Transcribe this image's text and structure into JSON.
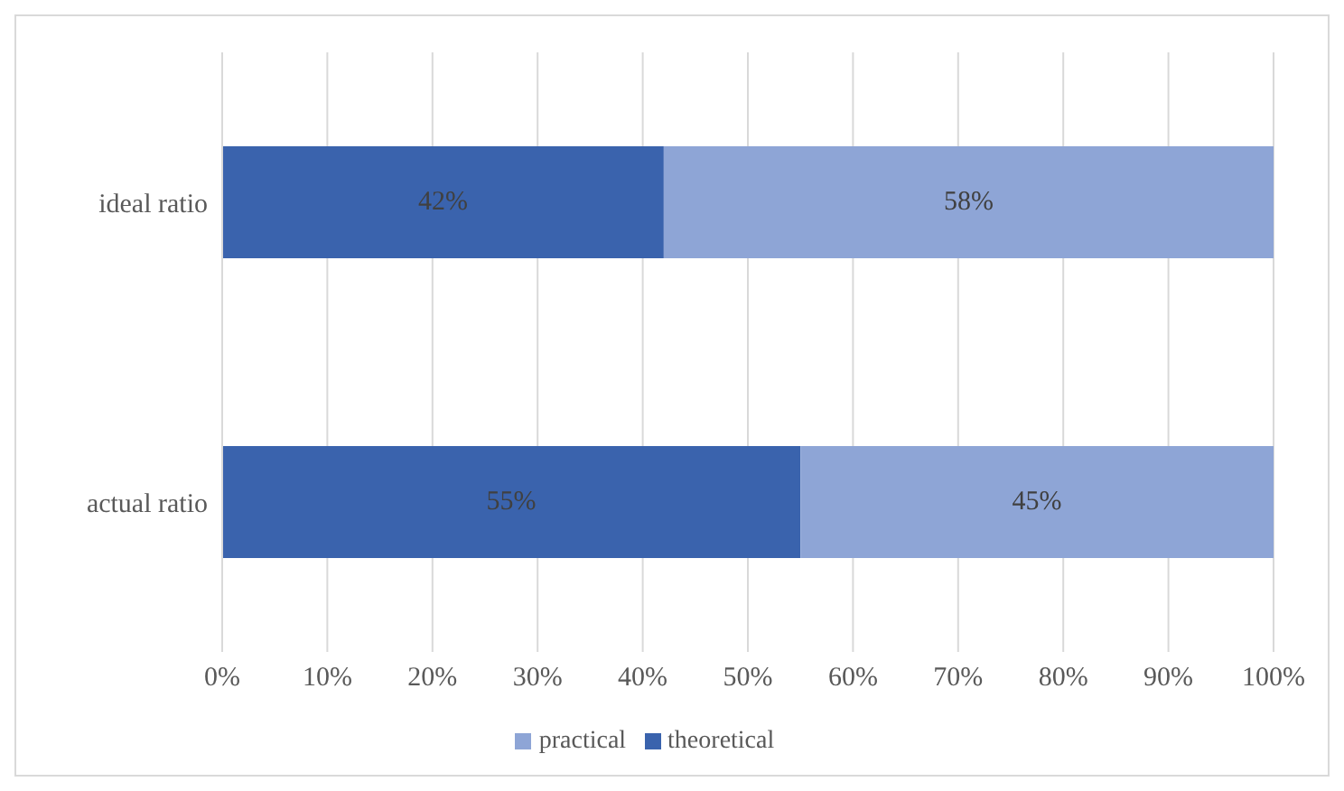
{
  "chart_data": {
    "type": "bar",
    "orientation": "horizontal",
    "stacked": true,
    "categories": [
      "ideal ratio",
      "actual ratio"
    ],
    "series": [
      {
        "name": "theoretical",
        "color": "#3a63ad",
        "values": [
          42,
          55
        ],
        "value_labels": [
          "42%",
          "55%"
        ]
      },
      {
        "name": "practical",
        "color": "#8ea5d6",
        "values": [
          58,
          45
        ],
        "value_labels": [
          "58%",
          "45%"
        ]
      }
    ],
    "xlim": [
      0,
      100
    ],
    "xticks": [
      {
        "value": 0,
        "label": "0%"
      },
      {
        "value": 10,
        "label": "10%"
      },
      {
        "value": 20,
        "label": "20%"
      },
      {
        "value": 30,
        "label": "30%"
      },
      {
        "value": 40,
        "label": "40%"
      },
      {
        "value": 50,
        "label": "50%"
      },
      {
        "value": 60,
        "label": "60%"
      },
      {
        "value": 70,
        "label": "70%"
      },
      {
        "value": 80,
        "label": "80%"
      },
      {
        "value": 90,
        "label": "90%"
      },
      {
        "value": 100,
        "label": "100%"
      }
    ],
    "grid": "x",
    "legend": "bottom"
  }
}
